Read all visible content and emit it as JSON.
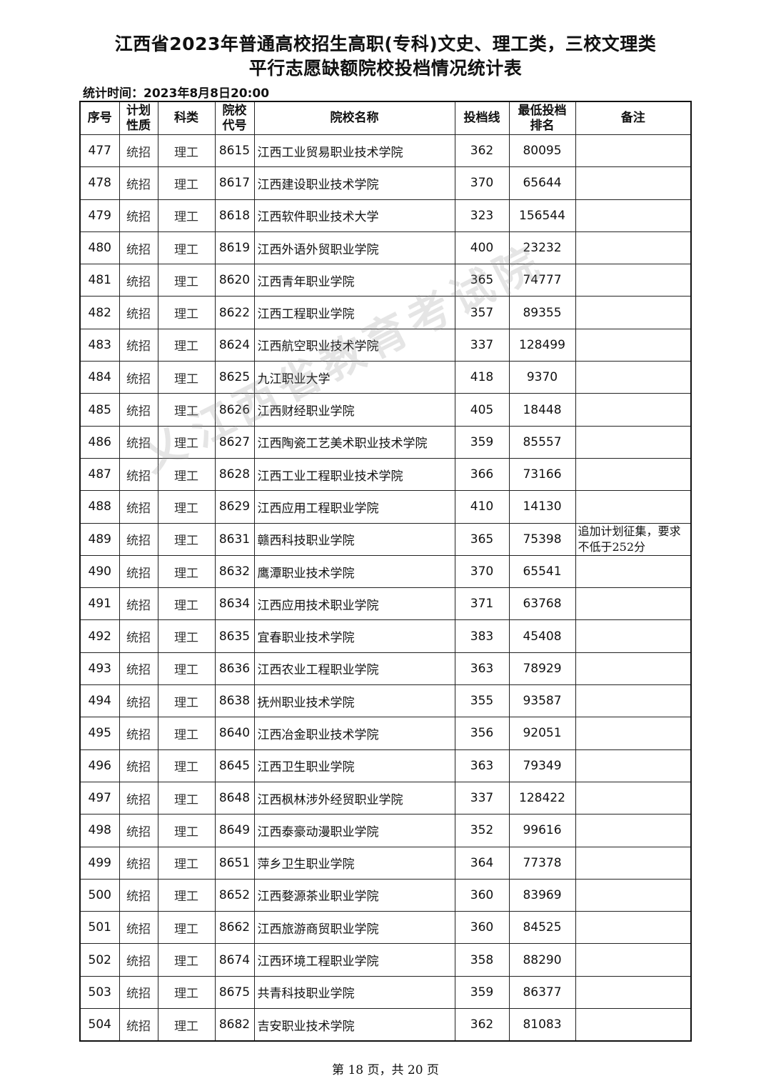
{
  "title_line1": "江西省2023年普通高校招生高职(专科)文史、理工类，三校文理类",
  "title_line2": "平行志愿缺额院校投档情况统计表",
  "stat_time": "统计时间：2023年8月8日20:00",
  "headers": [
    "序号",
    "计划性质",
    "科类",
    "院校代号",
    "院校名称",
    "投档线",
    "最低投档排名",
    "备注"
  ],
  "rows": [
    [
      "477",
      "统招",
      "理工",
      "8615",
      "江西工业贸易职业技术学院",
      "362",
      "80095",
      ""
    ],
    [
      "478",
      "统招",
      "理工",
      "8617",
      "江西建设职业技术学院",
      "370",
      "65644",
      ""
    ],
    [
      "479",
      "统招",
      "理工",
      "8618",
      "江西软件职业技术大学",
      "323",
      "156544",
      ""
    ],
    [
      "480",
      "统招",
      "理工",
      "8619",
      "江西外语外贸职业学院",
      "400",
      "23232",
      ""
    ],
    [
      "481",
      "统招",
      "理工",
      "8620",
      "江西青年职业学院",
      "365",
      "74777",
      ""
    ],
    [
      "482",
      "统招",
      "理工",
      "8622",
      "江西工程职业学院",
      "357",
      "89355",
      ""
    ],
    [
      "483",
      "统招",
      "理工",
      "8624",
      "江西航空职业技术学院",
      "337",
      "128499",
      ""
    ],
    [
      "484",
      "统招",
      "理工",
      "8625",
      "九江职业大学",
      "418",
      "9370",
      ""
    ],
    [
      "485",
      "统招",
      "理工",
      "8626",
      "江西财经职业学院",
      "405",
      "18448",
      ""
    ],
    [
      "486",
      "统招",
      "理工",
      "8627",
      "江西陶瓷工艺美术职业技术学院",
      "359",
      "85557",
      ""
    ],
    [
      "487",
      "统招",
      "理工",
      "8628",
      "江西工业工程职业技术学院",
      "366",
      "73166",
      ""
    ],
    [
      "488",
      "统招",
      "理工",
      "8629",
      "江西应用工程职业学院",
      "410",
      "14130",
      ""
    ],
    [
      "489",
      "统招",
      "理工",
      "8631",
      "赣西科技职业学院",
      "365",
      "75398",
      "追加计划征集，要求不低于252分"
    ],
    [
      "490",
      "统招",
      "理工",
      "8632",
      "鹰潭职业技术学院",
      "370",
      "65541",
      ""
    ],
    [
      "491",
      "统招",
      "理工",
      "8634",
      "江西应用技术职业学院",
      "371",
      "63768",
      ""
    ],
    [
      "492",
      "统招",
      "理工",
      "8635",
      "宜春职业技术学院",
      "383",
      "45408",
      ""
    ],
    [
      "493",
      "统招",
      "理工",
      "8636",
      "江西农业工程职业学院",
      "363",
      "78929",
      ""
    ],
    [
      "494",
      "统招",
      "理工",
      "8638",
      "抚州职业技术学院",
      "355",
      "93587",
      ""
    ],
    [
      "495",
      "统招",
      "理工",
      "8640",
      "江西冶金职业技术学院",
      "356",
      "92051",
      ""
    ],
    [
      "496",
      "统招",
      "理工",
      "8645",
      "江西卫生职业学院",
      "363",
      "79349",
      ""
    ],
    [
      "497",
      "统招",
      "理工",
      "8648",
      "江西枫林涉外经贸职业学院",
      "337",
      "128422",
      ""
    ],
    [
      "498",
      "统招",
      "理工",
      "8649",
      "江西泰豪动漫职业学院",
      "352",
      "99616",
      ""
    ],
    [
      "499",
      "统招",
      "理工",
      "8651",
      "萍乡卫生职业学院",
      "364",
      "77378",
      ""
    ],
    [
      "500",
      "统招",
      "理工",
      "8652",
      "江西婺源茶业职业学院",
      "360",
      "83969",
      ""
    ],
    [
      "501",
      "统招",
      "理工",
      "8662",
      "江西旅游商贸职业学院",
      "360",
      "84525",
      ""
    ],
    [
      "502",
      "统招",
      "理工",
      "8674",
      "江西环境工程职业学院",
      "358",
      "88290",
      ""
    ],
    [
      "503",
      "统招",
      "理工",
      "8675",
      "共青科技职业学院",
      "359",
      "86377",
      ""
    ],
    [
      "504",
      "统招",
      "理工",
      "8682",
      "吉安职业技术学院",
      "362",
      "81083",
      ""
    ]
  ],
  "watermark": "江西省教育考试院",
  "footer": "第 18 页，共 20 页"
}
